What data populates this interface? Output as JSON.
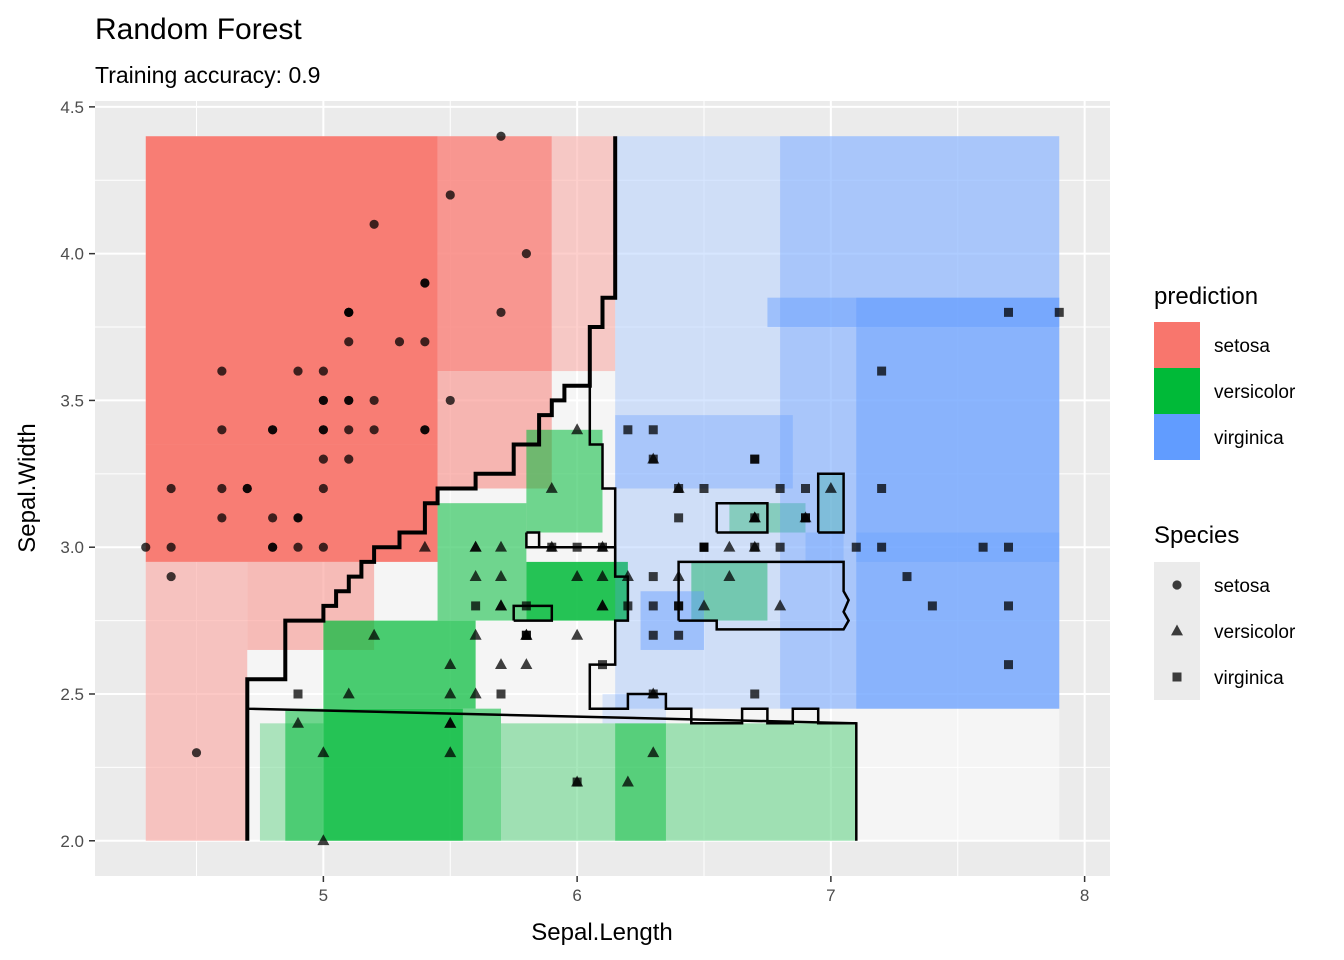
{
  "chart_data": {
    "type": "scatter",
    "title": "Random Forest",
    "subtitle": "Training accuracy: 0.9",
    "xlabel": "Sepal.Length",
    "ylabel": "Sepal.Width",
    "xlim": [
      4.1,
      8.1
    ],
    "ylim": [
      1.88,
      4.52
    ],
    "x_ticks": [
      5,
      6,
      7,
      8
    ],
    "y_ticks": [
      2.0,
      2.5,
      3.0,
      3.5,
      4.0,
      4.5
    ],
    "x_tick_labels": [
      "5",
      "6",
      "7",
      "8"
    ],
    "y_tick_labels": [
      "2.0",
      "2.5",
      "3.0",
      "3.5",
      "4.0",
      "4.5"
    ],
    "grid": true,
    "legend_position": "right",
    "colors": {
      "setosa": "#F8766D",
      "versicolor": "#00BA38",
      "virginica": "#619CFF",
      "panel": "#EBEBEB",
      "point": "#333333"
    },
    "prediction_legend": {
      "title": "prediction",
      "items": [
        {
          "label": "setosa",
          "color": "#F8766D"
        },
        {
          "label": "versicolor",
          "color": "#00BA38"
        },
        {
          "label": "virginica",
          "color": "#619CFF"
        }
      ]
    },
    "species_legend": {
      "title": "Species",
      "items": [
        {
          "label": "setosa",
          "shape": "circle"
        },
        {
          "label": "versicolor",
          "shape": "triangle"
        },
        {
          "label": "virginica",
          "shape": "square"
        }
      ]
    },
    "regions": [
      {
        "prediction": "setosa",
        "x": [
          4.3,
          5.45
        ],
        "y": [
          3.35,
          4.4
        ],
        "alpha": 0.95
      },
      {
        "prediction": "setosa",
        "x": [
          4.3,
          5.45
        ],
        "y": [
          2.95,
          3.35
        ],
        "alpha": 0.95
      },
      {
        "prediction": "setosa",
        "x": [
          5.45,
          5.9
        ],
        "y": [
          3.6,
          4.4
        ],
        "alpha": 0.75
      },
      {
        "prediction": "setosa",
        "x": [
          5.9,
          6.15
        ],
        "y": [
          3.6,
          4.4
        ],
        "alpha": 0.35
      },
      {
        "prediction": "setosa",
        "x": [
          4.3,
          4.7
        ],
        "y": [
          2.0,
          2.95
        ],
        "alpha": 0.4
      },
      {
        "prediction": "setosa",
        "x": [
          4.7,
          5.2
        ],
        "y": [
          2.65,
          2.95
        ],
        "alpha": 0.45
      },
      {
        "prediction": "setosa",
        "x": [
          5.45,
          5.9
        ],
        "y": [
          3.2,
          3.6
        ],
        "alpha": 0.5
      },
      {
        "prediction": "versicolor",
        "x": [
          5.0,
          5.55
        ],
        "y": [
          2.0,
          2.45
        ],
        "alpha": 0.85
      },
      {
        "prediction": "versicolor",
        "x": [
          4.85,
          5.0
        ],
        "y": [
          2.0,
          2.45
        ],
        "alpha": 0.55
      },
      {
        "prediction": "versicolor",
        "x": [
          5.55,
          5.7
        ],
        "y": [
          2.0,
          2.45
        ],
        "alpha": 0.55
      },
      {
        "prediction": "versicolor",
        "x": [
          5.0,
          5.6
        ],
        "y": [
          2.45,
          2.75
        ],
        "alpha": 0.7
      },
      {
        "prediction": "versicolor",
        "x": [
          5.45,
          5.8
        ],
        "y": [
          2.75,
          3.15
        ],
        "alpha": 0.55
      },
      {
        "prediction": "versicolor",
        "x": [
          5.8,
          6.2
        ],
        "y": [
          2.75,
          2.95
        ],
        "alpha": 0.85
      },
      {
        "prediction": "versicolor",
        "x": [
          5.8,
          6.1
        ],
        "y": [
          3.05,
          3.4
        ],
        "alpha": 0.55
      },
      {
        "prediction": "versicolor",
        "x": [
          5.7,
          7.1
        ],
        "y": [
          2.0,
          2.4
        ],
        "alpha": 0.35
      },
      {
        "prediction": "versicolor",
        "x": [
          6.15,
          6.35
        ],
        "y": [
          2.0,
          2.4
        ],
        "alpha": 0.45
      },
      {
        "prediction": "versicolor",
        "x": [
          6.45,
          6.75
        ],
        "y": [
          2.75,
          2.95
        ],
        "alpha": 0.5
      },
      {
        "prediction": "versicolor",
        "x": [
          6.6,
          6.9
        ],
        "y": [
          3.05,
          3.15
        ],
        "alpha": 0.4
      },
      {
        "prediction": "versicolor",
        "x": [
          6.95,
          7.05
        ],
        "y": [
          3.05,
          3.25
        ],
        "alpha": 0.35
      },
      {
        "prediction": "versicolor",
        "x": [
          4.75,
          5.0
        ],
        "y": [
          2.0,
          2.4
        ],
        "alpha": 0.3
      },
      {
        "prediction": "virginica",
        "x": [
          6.15,
          7.9
        ],
        "y": [
          2.45,
          4.4
        ],
        "alpha": 0.25
      },
      {
        "prediction": "virginica",
        "x": [
          6.8,
          7.9
        ],
        "y": [
          2.45,
          4.4
        ],
        "alpha": 0.35
      },
      {
        "prediction": "virginica",
        "x": [
          7.1,
          7.9
        ],
        "y": [
          2.45,
          3.85
        ],
        "alpha": 0.45
      },
      {
        "prediction": "virginica",
        "x": [
          6.75,
          7.9
        ],
        "y": [
          3.75,
          3.85
        ],
        "alpha": 0.45
      },
      {
        "prediction": "virginica",
        "x": [
          7.1,
          7.9
        ],
        "y": [
          2.95,
          3.05
        ],
        "alpha": 0.3
      },
      {
        "prediction": "virginica",
        "x": [
          6.15,
          6.85
        ],
        "y": [
          3.2,
          3.45
        ],
        "alpha": 0.35
      },
      {
        "prediction": "virginica",
        "x": [
          6.25,
          6.5
        ],
        "y": [
          2.65,
          2.85
        ],
        "alpha": 0.45
      },
      {
        "prediction": "virginica",
        "x": [
          6.9,
          7.05
        ],
        "y": [
          2.95,
          3.05
        ],
        "alpha": 0.3
      },
      {
        "prediction": "virginica",
        "x": [
          6.1,
          6.35
        ],
        "y": [
          2.4,
          2.5
        ],
        "alpha": 0.2
      }
    ],
    "boundaries": [
      {
        "stroke_width": 4,
        "points": [
          [
            6.15,
            4.4
          ],
          [
            6.15,
            3.85
          ],
          [
            6.1,
            3.85
          ],
          [
            6.1,
            3.75
          ],
          [
            6.05,
            3.75
          ],
          [
            6.05,
            3.55
          ],
          [
            5.95,
            3.55
          ],
          [
            5.95,
            3.5
          ],
          [
            5.9,
            3.5
          ],
          [
            5.9,
            3.45
          ],
          [
            5.85,
            3.45
          ],
          [
            5.85,
            3.35
          ],
          [
            5.75,
            3.35
          ],
          [
            5.75,
            3.25
          ],
          [
            5.6,
            3.25
          ],
          [
            5.6,
            3.2
          ],
          [
            5.45,
            3.2
          ],
          [
            5.45,
            3.15
          ],
          [
            5.4,
            3.15
          ],
          [
            5.4,
            3.05
          ],
          [
            5.3,
            3.05
          ],
          [
            5.3,
            3.0
          ],
          [
            5.2,
            3.0
          ],
          [
            5.2,
            2.95
          ],
          [
            5.15,
            2.95
          ],
          [
            5.15,
            2.9
          ],
          [
            5.1,
            2.9
          ],
          [
            5.1,
            2.85
          ],
          [
            5.05,
            2.85
          ],
          [
            5.05,
            2.8
          ],
          [
            5.0,
            2.8
          ],
          [
            5.0,
            2.75
          ],
          [
            4.85,
            2.75
          ],
          [
            4.85,
            2.55
          ],
          [
            4.7,
            2.55
          ],
          [
            4.7,
            2.0
          ]
        ]
      },
      {
        "stroke_width": 2.5,
        "points": [
          [
            4.7,
            2.55
          ],
          [
            4.7,
            2.45
          ],
          [
            7.1,
            2.4
          ],
          [
            7.1,
            2.0
          ]
        ]
      },
      {
        "stroke_width": 2.5,
        "points": [
          [
            6.05,
            3.55
          ],
          [
            6.05,
            3.35
          ],
          [
            6.1,
            3.35
          ],
          [
            6.1,
            3.2
          ],
          [
            6.15,
            3.2
          ],
          [
            6.15,
            2.9
          ],
          [
            6.2,
            2.9
          ],
          [
            6.2,
            2.75
          ],
          [
            6.15,
            2.75
          ],
          [
            6.15,
            2.6
          ],
          [
            6.05,
            2.6
          ],
          [
            6.05,
            2.45
          ],
          [
            6.2,
            2.45
          ],
          [
            6.2,
            2.5
          ],
          [
            6.35,
            2.5
          ],
          [
            6.35,
            2.45
          ],
          [
            6.45,
            2.45
          ],
          [
            6.45,
            2.4
          ],
          [
            6.65,
            2.4
          ],
          [
            6.65,
            2.45
          ],
          [
            6.75,
            2.45
          ],
          [
            6.75,
            2.4
          ],
          [
            6.85,
            2.4
          ],
          [
            6.85,
            2.45
          ],
          [
            6.95,
            2.45
          ],
          [
            6.95,
            2.4
          ],
          [
            7.1,
            2.4
          ]
        ]
      },
      {
        "stroke_width": 2.5,
        "points": [
          [
            5.8,
            3.05
          ],
          [
            5.8,
            3.0
          ],
          [
            6.15,
            3.0
          ],
          [
            6.15,
            2.9
          ]
        ]
      },
      {
        "stroke_width": 2.5,
        "points": [
          [
            5.8,
            3.05
          ],
          [
            5.85,
            3.05
          ],
          [
            5.85,
            3.0
          ]
        ]
      },
      {
        "stroke_width": 2.5,
        "points": [
          [
            5.75,
            2.75
          ],
          [
            5.75,
            2.8
          ],
          [
            5.9,
            2.8
          ],
          [
            5.9,
            2.75
          ],
          [
            5.75,
            2.75
          ]
        ]
      },
      {
        "stroke_width": 2.5,
        "points": [
          [
            6.4,
            2.75
          ],
          [
            6.4,
            2.95
          ],
          [
            7.05,
            2.95
          ],
          [
            7.05,
            2.85
          ],
          [
            7.07,
            2.82
          ],
          [
            7.05,
            2.78
          ],
          [
            7.07,
            2.75
          ],
          [
            7.05,
            2.72
          ],
          [
            6.55,
            2.72
          ],
          [
            6.55,
            2.75
          ],
          [
            6.4,
            2.75
          ]
        ]
      },
      {
        "stroke_width": 2.5,
        "points": [
          [
            6.55,
            3.05
          ],
          [
            6.55,
            3.15
          ],
          [
            6.75,
            3.15
          ],
          [
            6.75,
            3.05
          ],
          [
            6.55,
            3.05
          ]
        ]
      },
      {
        "stroke_width": 2.5,
        "points": [
          [
            6.95,
            3.05
          ],
          [
            6.95,
            3.25
          ],
          [
            7.05,
            3.25
          ],
          [
            7.05,
            3.05
          ],
          [
            6.95,
            3.05
          ]
        ]
      }
    ],
    "series": [
      {
        "name": "setosa",
        "shape": "circle",
        "x": [
          5.1,
          4.9,
          4.7,
          4.6,
          5.0,
          5.4,
          4.6,
          5.0,
          4.4,
          4.9,
          5.4,
          4.8,
          4.8,
          4.3,
          5.8,
          5.7,
          5.4,
          5.1,
          5.7,
          5.1,
          5.4,
          5.1,
          4.6,
          5.1,
          4.8,
          5.0,
          5.0,
          5.2,
          5.2,
          4.7,
          4.8,
          5.4,
          5.2,
          5.5,
          4.9,
          5.0,
          5.5,
          4.9,
          4.4,
          5.1,
          5.0,
          4.5,
          4.4,
          5.0,
          5.1,
          4.8,
          5.1,
          4.6,
          5.3,
          5.0
        ],
        "y": [
          3.5,
          3.0,
          3.2,
          3.1,
          3.6,
          3.9,
          3.4,
          3.4,
          2.9,
          3.1,
          3.7,
          3.4,
          3.0,
          3.0,
          4.0,
          4.4,
          3.9,
          3.5,
          3.8,
          3.8,
          3.4,
          3.7,
          3.6,
          3.3,
          3.4,
          3.0,
          3.4,
          3.5,
          3.4,
          3.2,
          3.1,
          3.4,
          4.1,
          4.2,
          3.1,
          3.2,
          3.5,
          3.6,
          3.0,
          3.4,
          3.5,
          2.3,
          3.2,
          3.5,
          3.8,
          3.0,
          3.8,
          3.2,
          3.7,
          3.3
        ]
      },
      {
        "name": "versicolor",
        "shape": "triangle",
        "x": [
          7.0,
          6.4,
          6.9,
          5.5,
          6.5,
          5.7,
          6.3,
          4.9,
          6.6,
          5.2,
          5.0,
          5.9,
          6.0,
          6.1,
          5.6,
          6.7,
          5.6,
          5.8,
          6.2,
          5.6,
          5.9,
          6.1,
          6.3,
          6.1,
          6.4,
          6.6,
          6.8,
          6.7,
          6.0,
          5.7,
          5.5,
          5.5,
          5.8,
          6.0,
          5.4,
          6.0,
          6.7,
          6.3,
          5.6,
          5.5,
          5.5,
          6.1,
          5.8,
          5.0,
          5.6,
          5.7,
          5.7,
          6.2,
          5.1,
          5.7
        ],
        "y": [
          3.2,
          3.2,
          3.1,
          2.3,
          2.8,
          2.8,
          3.3,
          2.4,
          2.9,
          2.7,
          2.0,
          3.0,
          2.2,
          2.9,
          2.9,
          3.1,
          3.0,
          2.7,
          2.2,
          2.5,
          3.2,
          2.8,
          2.5,
          2.8,
          2.9,
          3.0,
          2.8,
          3.0,
          2.9,
          2.6,
          2.4,
          2.4,
          2.7,
          2.7,
          3.0,
          3.4,
          3.1,
          2.3,
          3.0,
          2.5,
          2.6,
          3.0,
          2.6,
          2.3,
          2.7,
          3.0,
          2.9,
          2.9,
          2.5,
          2.8
        ]
      },
      {
        "name": "virginica",
        "shape": "square",
        "x": [
          6.3,
          5.8,
          7.1,
          6.3,
          6.5,
          7.6,
          4.9,
          7.3,
          6.7,
          7.2,
          6.5,
          6.4,
          6.8,
          5.7,
          5.8,
          6.4,
          6.5,
          7.7,
          7.7,
          6.0,
          6.9,
          5.6,
          7.7,
          6.3,
          6.7,
          7.2,
          6.2,
          6.1,
          6.4,
          7.2,
          7.4,
          7.9,
          6.4,
          6.3,
          6.1,
          7.7,
          6.3,
          6.4,
          6.0,
          6.9,
          6.7,
          6.9,
          5.8,
          6.8,
          6.7,
          6.7,
          6.3,
          6.5,
          6.2,
          5.9
        ],
        "y": [
          3.3,
          2.7,
          3.0,
          2.9,
          3.0,
          3.0,
          2.5,
          2.9,
          2.5,
          3.6,
          3.2,
          2.7,
          3.0,
          2.5,
          2.8,
          3.2,
          3.0,
          3.8,
          2.6,
          2.2,
          3.2,
          2.8,
          2.8,
          2.7,
          3.3,
          3.2,
          2.8,
          3.0,
          2.8,
          3.0,
          2.8,
          3.8,
          2.8,
          2.8,
          2.6,
          3.0,
          3.4,
          3.1,
          3.0,
          3.1,
          3.1,
          3.1,
          2.7,
          3.2,
          3.3,
          3.0,
          2.5,
          3.0,
          3.4,
          3.0
        ]
      }
    ]
  }
}
